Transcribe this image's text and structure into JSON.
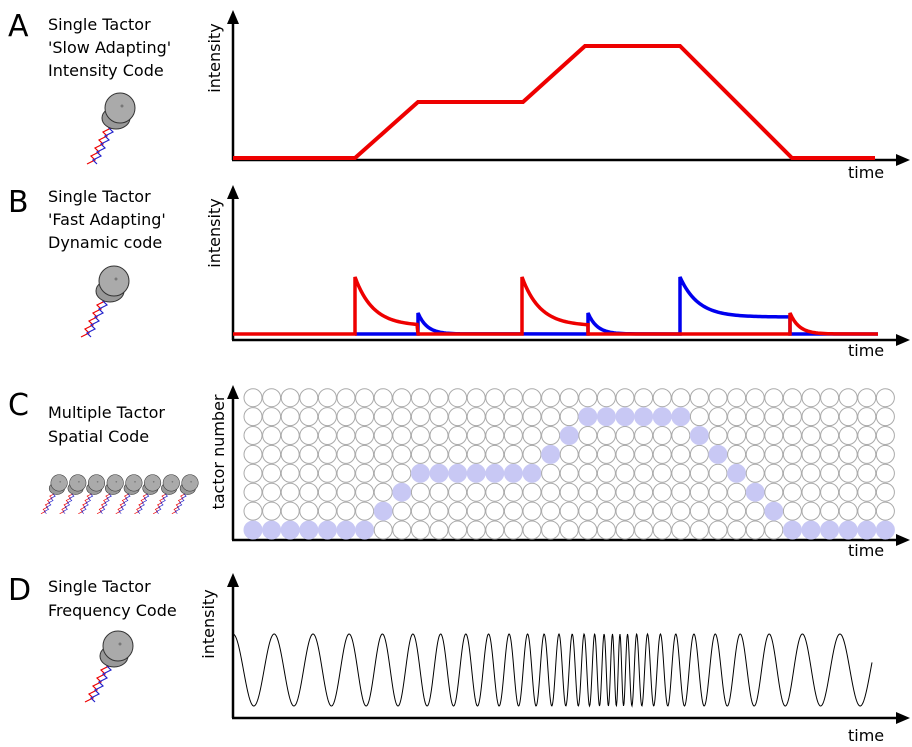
{
  "panels": [
    {
      "letter": "A",
      "title": [
        "Single Tactor",
        "'Slow Adapting'",
        "Intensity Code"
      ],
      "y_label": "intensity",
      "x_label": "time"
    },
    {
      "letter": "B",
      "title": [
        "Single Tactor",
        "'Fast Adapting'",
        "Dynamic code"
      ],
      "y_label": "intensity",
      "x_label": "time"
    },
    {
      "letter": "C",
      "title": [
        "Multiple Tactor",
        "Spatial Code"
      ],
      "y_label": "tactor number",
      "x_label": "time"
    },
    {
      "letter": "D",
      "title": [
        "Single Tactor",
        "Frequency Code"
      ],
      "y_label": "intensity",
      "x_label": "time"
    }
  ]
}
